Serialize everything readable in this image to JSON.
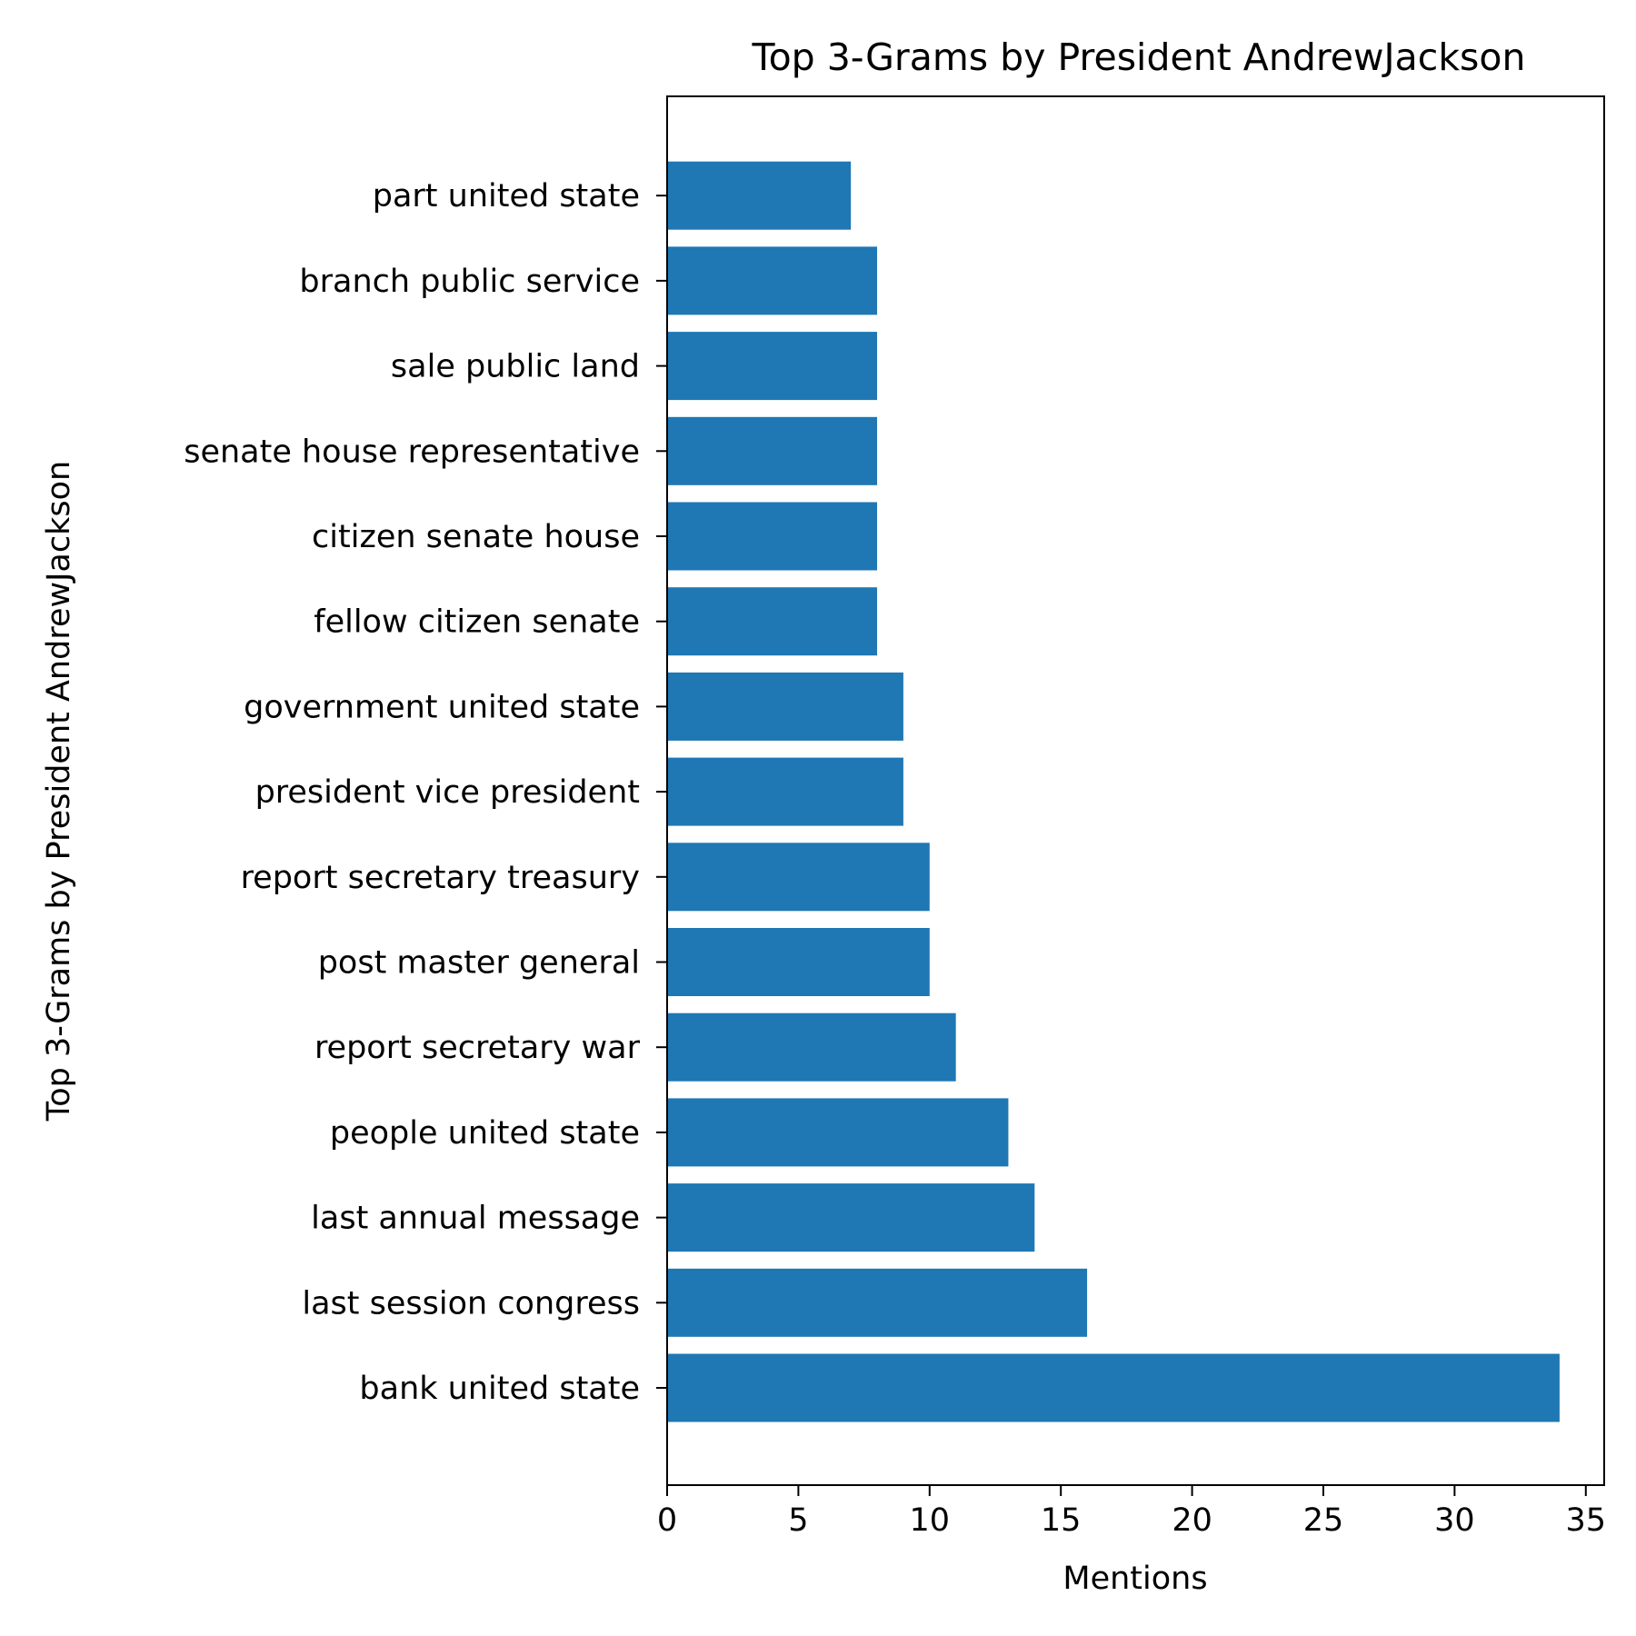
{
  "chart_data": {
    "type": "bar",
    "orientation": "horizontal",
    "title": "Top 3-Grams by President AndrewJackson",
    "xlabel": "Mentions",
    "ylabel": "Top 3-Grams by President AndrewJackson",
    "categories": [
      "bank united state",
      "last session congress",
      "last annual message",
      "people united state",
      "report secretary war",
      "post master general",
      "report secretary treasury",
      "president vice president",
      "government united state",
      "fellow citizen senate",
      "citizen senate house",
      "senate house representative",
      "sale public land",
      "branch public service",
      "part united state"
    ],
    "values": [
      34,
      16,
      14,
      13,
      11,
      10,
      10,
      9,
      9,
      8,
      8,
      8,
      8,
      8,
      7
    ],
    "xlim": [
      0,
      35.7
    ],
    "xticks": [
      0,
      5,
      10,
      15,
      20,
      25,
      30,
      35
    ],
    "grid": false,
    "bar_color": "#1f77b4"
  }
}
